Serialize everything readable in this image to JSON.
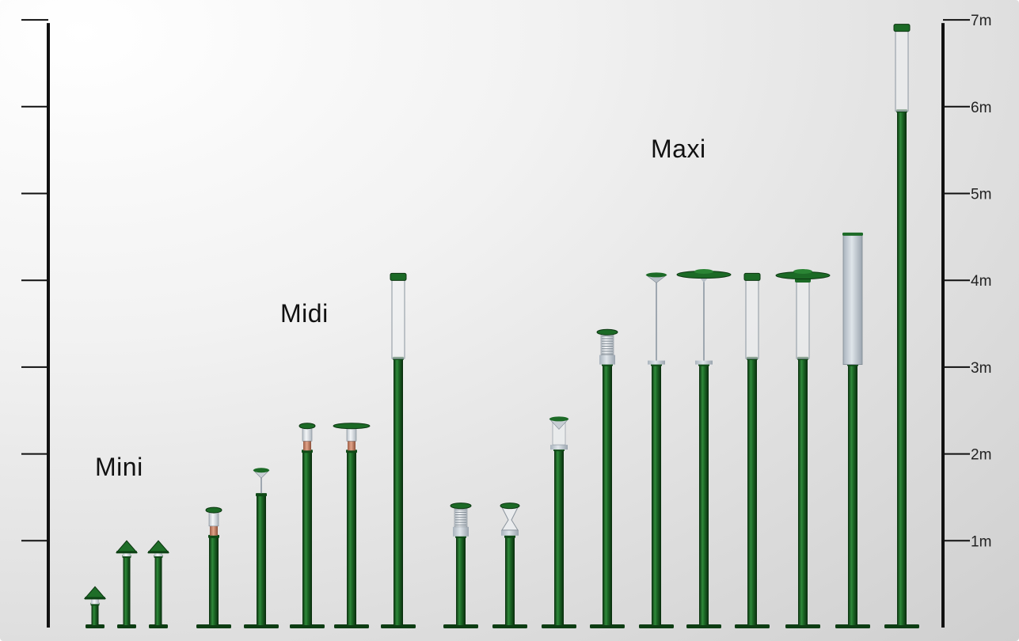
{
  "scale": {
    "unit": "m",
    "tick_labels": [
      "1m",
      "2m",
      "3m",
      "4m",
      "5m",
      "6m",
      "7m"
    ],
    "ticks": [
      1,
      2,
      3,
      4,
      5,
      6,
      7
    ]
  },
  "groups": [
    {
      "id": "mini",
      "label": "Mini"
    },
    {
      "id": "midi",
      "label": "Midi"
    },
    {
      "id": "maxi",
      "label": "Maxi"
    }
  ],
  "colors": {
    "pole_dark": "#0c3a12",
    "pole_light": "#2f8a3a",
    "diffuser": "#cfd6de",
    "copper": "#c7866b",
    "axis": "#111111"
  },
  "lamps": [
    {
      "group": "mini",
      "height_m": 0.47,
      "pole_top_m": 0.27,
      "head": "cone-cap"
    },
    {
      "group": "mini",
      "height_m": 1.0,
      "pole_top_m": 0.82,
      "head": "cone-cap"
    },
    {
      "group": "mini",
      "height_m": 1.0,
      "pole_top_m": 0.82,
      "head": "cone-cap"
    },
    {
      "group": "midi",
      "height_m": 1.38,
      "pole_top_m": 1.05,
      "head": "cylinder-copper"
    },
    {
      "group": "midi",
      "height_m": 1.83,
      "pole_top_m": 1.53,
      "head": "cone-rod"
    },
    {
      "group": "midi",
      "height_m": 2.35,
      "pole_top_m": 2.03,
      "head": "cylinder-copper"
    },
    {
      "group": "midi",
      "height_m": 2.35,
      "pole_top_m": 2.03,
      "head": "cylinder-copper-wide"
    },
    {
      "group": "midi",
      "height_m": 4.08,
      "pole_top_m": 3.1,
      "head": "clear-tube"
    },
    {
      "group": "maxi",
      "height_m": 1.43,
      "pole_top_m": 1.05,
      "head": "coil"
    },
    {
      "group": "maxi",
      "height_m": 1.43,
      "pole_top_m": 1.05,
      "head": "hourglass"
    },
    {
      "group": "maxi",
      "height_m": 2.43,
      "pole_top_m": 2.05,
      "head": "cone-rod-glass"
    },
    {
      "group": "maxi",
      "height_m": 3.43,
      "pole_top_m": 3.03,
      "head": "coil"
    },
    {
      "group": "maxi",
      "height_m": 4.08,
      "pole_top_m": 3.03,
      "head": "cone-rod-long"
    },
    {
      "group": "maxi",
      "height_m": 4.12,
      "pole_top_m": 3.03,
      "head": "disc-rod"
    },
    {
      "group": "maxi",
      "height_m": 4.08,
      "pole_top_m": 3.1,
      "head": "clear-tube"
    },
    {
      "group": "maxi",
      "height_m": 4.12,
      "pole_top_m": 3.1,
      "head": "disc-tube"
    },
    {
      "group": "maxi",
      "height_m": 4.55,
      "pole_top_m": 3.03,
      "head": "opal-tube"
    },
    {
      "group": "maxi",
      "height_m": 6.95,
      "pole_top_m": 5.95,
      "head": "clear-tube"
    }
  ]
}
